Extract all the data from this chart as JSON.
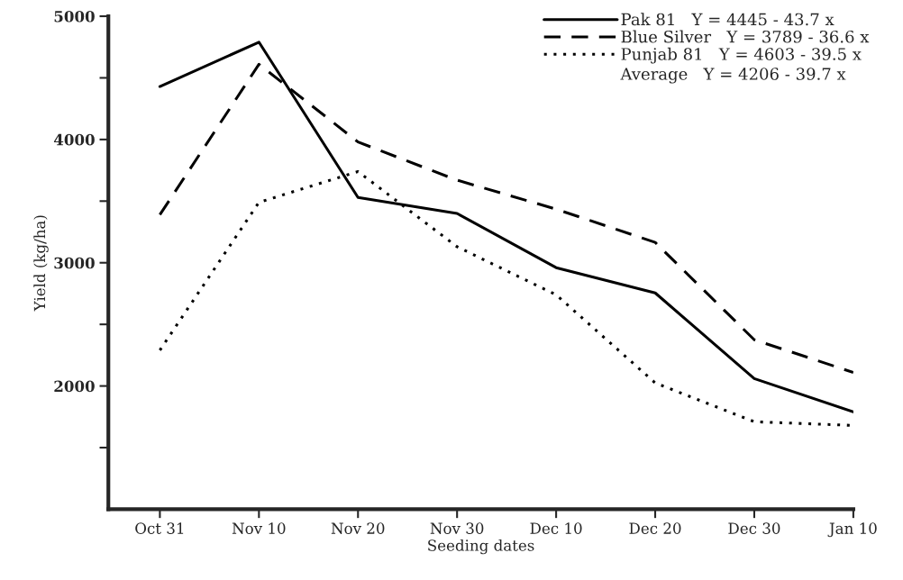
{
  "chart_data": {
    "type": "line",
    "xlabel": "Seeding dates",
    "ylabel": "Yield (kg/ha)",
    "categories": [
      "Oct 31",
      "Nov 10",
      "Nov 20",
      "Nov 30",
      "Dec 10",
      "Dec 20",
      "Dec 30",
      "Jan 10"
    ],
    "series": [
      {
        "name": "Pak 81   Y = 4445 - 43.7 x",
        "color": "#000000",
        "line_style": "solid",
        "values": [
          4430,
          4790,
          3530,
          3400,
          2960,
          2755,
          2060,
          1790
        ]
      },
      {
        "name": "Blue Silver   Y = 3789 - 36.6 x",
        "color": "#000000",
        "line_style": "dashed",
        "values": [
          3390,
          4610,
          3980,
          3670,
          3435,
          3165,
          2375,
          2110
        ]
      },
      {
        "name": "Punjab 81   Y = 4603 - 39.5 x",
        "color": "#000000",
        "line_style": "dotted",
        "values": [
          2290,
          3490,
          3740,
          3130,
          2740,
          2025,
          1710,
          1680
        ]
      }
    ],
    "ylim": [
      1000,
      5000
    ],
    "yticks": [
      {
        "value": 1500,
        "label": null
      },
      2000,
      {
        "value": 2500,
        "label": null
      },
      3000,
      {
        "value": 3500,
        "label": null
      },
      4000,
      {
        "value": 4500,
        "label": null
      },
      5000
    ],
    "annotations": [
      "Average   Y = 4206 - 39.7 x"
    ],
    "legend": "top right",
    "grid": false,
    "marker": "none"
  }
}
